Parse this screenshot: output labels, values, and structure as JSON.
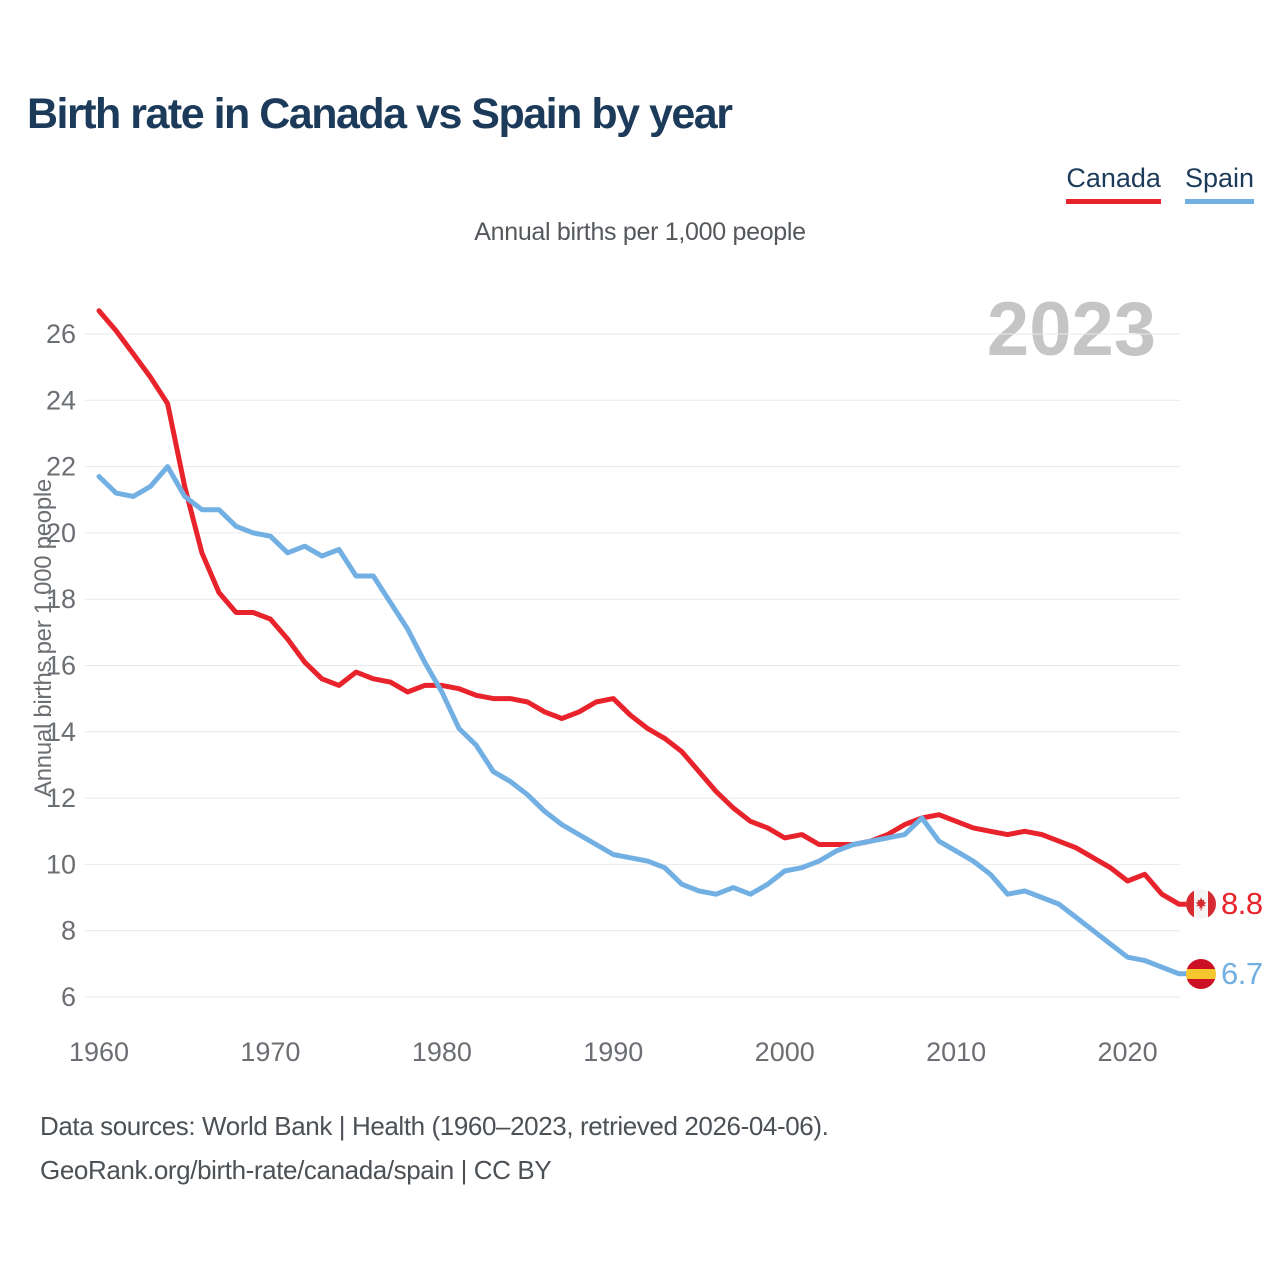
{
  "header": {
    "title": "Birth rate in Canada vs Spain by year"
  },
  "legend": {
    "items": [
      {
        "label": "Canada",
        "color": "#e8232b"
      },
      {
        "label": "Spain",
        "color": "#72afe3"
      }
    ]
  },
  "subtitle": "Annual births per 1,000 people",
  "watermark": "2023",
  "chart_data": {
    "type": "line",
    "title": "Birth rate in Canada vs Spain by year",
    "ylabel": "Annual births per 1,000 people",
    "xlabel": "",
    "ylim": [
      6,
      26
    ],
    "y_ticks": [
      6,
      8,
      10,
      12,
      14,
      16,
      18,
      20,
      22,
      24,
      26
    ],
    "x_ticks": [
      1960,
      1970,
      1980,
      1990,
      2000,
      2010,
      2020
    ],
    "grid": "horizontal",
    "legend_position": "top-right",
    "x_start": 1960,
    "x_end": 2023,
    "series": [
      {
        "name": "Canada",
        "color": "#e8232b",
        "values": [
          26.7,
          26.1,
          25.4,
          24.7,
          23.9,
          21.4,
          19.4,
          18.2,
          17.6,
          17.6,
          17.4,
          16.8,
          16.1,
          15.6,
          15.4,
          15.8,
          15.6,
          15.5,
          15.2,
          15.4,
          15.4,
          15.3,
          15.1,
          15.0,
          15.0,
          14.9,
          14.6,
          14.4,
          14.6,
          14.9,
          15.0,
          14.5,
          14.1,
          13.8,
          13.4,
          12.8,
          12.2,
          11.7,
          11.3,
          11.1,
          10.8,
          10.9,
          10.6,
          10.6,
          10.6,
          10.7,
          10.9,
          11.2,
          11.4,
          11.5,
          11.3,
          11.1,
          11.0,
          10.9,
          11.0,
          10.9,
          10.7,
          10.5,
          10.2,
          9.9,
          9.5,
          9.7,
          9.1,
          8.8
        ]
      },
      {
        "name": "Spain",
        "color": "#72afe3",
        "values": [
          21.7,
          21.2,
          21.1,
          21.4,
          22.0,
          21.1,
          20.7,
          20.7,
          20.2,
          20.0,
          19.9,
          19.4,
          19.6,
          19.3,
          19.5,
          18.7,
          18.7,
          17.9,
          17.1,
          16.1,
          15.2,
          14.1,
          13.6,
          12.8,
          12.5,
          12.1,
          11.6,
          11.2,
          10.9,
          10.6,
          10.3,
          10.2,
          10.1,
          9.9,
          9.4,
          9.2,
          9.1,
          9.3,
          9.1,
          9.4,
          9.8,
          9.9,
          10.1,
          10.4,
          10.6,
          10.7,
          10.8,
          10.9,
          11.4,
          10.7,
          10.4,
          10.1,
          9.7,
          9.1,
          9.2,
          9.0,
          8.8,
          8.4,
          8.0,
          7.6,
          7.2,
          7.1,
          6.9,
          6.7
        ]
      }
    ],
    "end_labels": [
      {
        "series": "Canada",
        "text": "8.8",
        "flag": "canada"
      },
      {
        "series": "Spain",
        "text": "6.7",
        "flag": "spain"
      }
    ]
  },
  "footer": {
    "line1": "Data sources: World Bank | Health (1960–2023, retrieved 2026-04-06).",
    "line2": "GeoRank.org/birth-rate/canada/spain | CC BY"
  }
}
